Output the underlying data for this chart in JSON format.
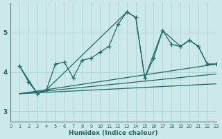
{
  "xlabel": "Humidex (Indice chaleur)",
  "bg_color": "#cce8e8",
  "line_color": "#1a6b6b",
  "grid_color": "#aad4d4",
  "xlim": [
    0,
    23
  ],
  "ylim": [
    2.75,
    5.75
  ],
  "yticks": [
    3,
    4,
    5
  ],
  "xticks": [
    0,
    1,
    2,
    3,
    4,
    5,
    6,
    7,
    8,
    9,
    10,
    11,
    12,
    13,
    14,
    15,
    16,
    17,
    18,
    19,
    20,
    21,
    22,
    23
  ],
  "series1_x": [
    1,
    2,
    3,
    4,
    5,
    6,
    7,
    8,
    9,
    10,
    11,
    12,
    13,
    14,
    15,
    16,
    17,
    18,
    19,
    20,
    21,
    22,
    23
  ],
  "series1_y": [
    4.15,
    3.75,
    3.45,
    3.55,
    4.2,
    4.25,
    3.85,
    4.3,
    4.35,
    4.5,
    4.65,
    5.2,
    5.52,
    5.38,
    3.85,
    4.35,
    5.05,
    4.7,
    4.65,
    4.8,
    4.65,
    4.2,
    4.2
  ],
  "series2_x": [
    1,
    3,
    4,
    13,
    14,
    15,
    17,
    19,
    20,
    21,
    22,
    23
  ],
  "series2_y": [
    4.15,
    3.45,
    3.55,
    5.52,
    5.38,
    3.85,
    5.05,
    4.65,
    4.8,
    4.65,
    4.2,
    4.2
  ],
  "trendline1_x": [
    1,
    23
  ],
  "trendline1_y": [
    3.45,
    4.2
  ],
  "trendline2_x": [
    1,
    23
  ],
  "trendline2_y": [
    3.45,
    3.95
  ],
  "trendline3_x": [
    1,
    23
  ],
  "trendline3_y": [
    3.45,
    3.7
  ]
}
